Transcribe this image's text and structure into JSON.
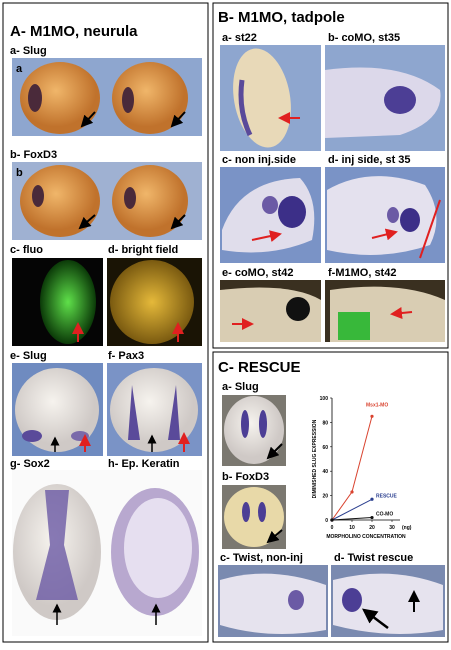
{
  "panel_a": {
    "title": "A- M1MO, neurula",
    "labels": [
      "a- Slug",
      "a",
      "b- FoxD3",
      "b",
      "c- fluo",
      "d- bright field",
      "e- Slug",
      "f- Pax3",
      "g- Sox2",
      "h- Ep. Keratin"
    ]
  },
  "panel_b": {
    "title": "B- M1MO, tadpole",
    "labels": [
      "a- st22",
      "b- coMO, st35",
      "c- non inj.side",
      "d- inj side, st 35",
      "e- coMO, st42",
      "f-M1MO, st42"
    ]
  },
  "panel_c": {
    "title": "C- RESCUE",
    "labels": [
      "a- Slug",
      "b- FoxD3",
      "c- Twist, non-inj",
      "d- Twist rescue"
    ]
  },
  "chart_data": {
    "type": "line",
    "ylabel": "DIMINISHED SLUG EXPRESSION",
    "xlabel": "MORPHOLINO CONCENTRATION",
    "xunit": "(ng)",
    "xlim": [
      0,
      30
    ],
    "xticks": [
      0,
      10,
      20,
      30
    ],
    "ylim": [
      0,
      100
    ],
    "yticks": [
      0,
      20,
      40,
      60,
      80,
      100
    ],
    "series": [
      {
        "name": "Msx1-MO",
        "color": "#d9432f",
        "x": [
          0,
          10,
          20
        ],
        "values": [
          0,
          23,
          85
        ]
      },
      {
        "name": "RESCUE",
        "color": "#2b3f8f",
        "x": [
          0,
          20
        ],
        "values": [
          0,
          17
        ]
      },
      {
        "name": "CO-MO",
        "color": "#111111",
        "x": [
          0,
          20
        ],
        "values": [
          0,
          2
        ]
      }
    ]
  }
}
